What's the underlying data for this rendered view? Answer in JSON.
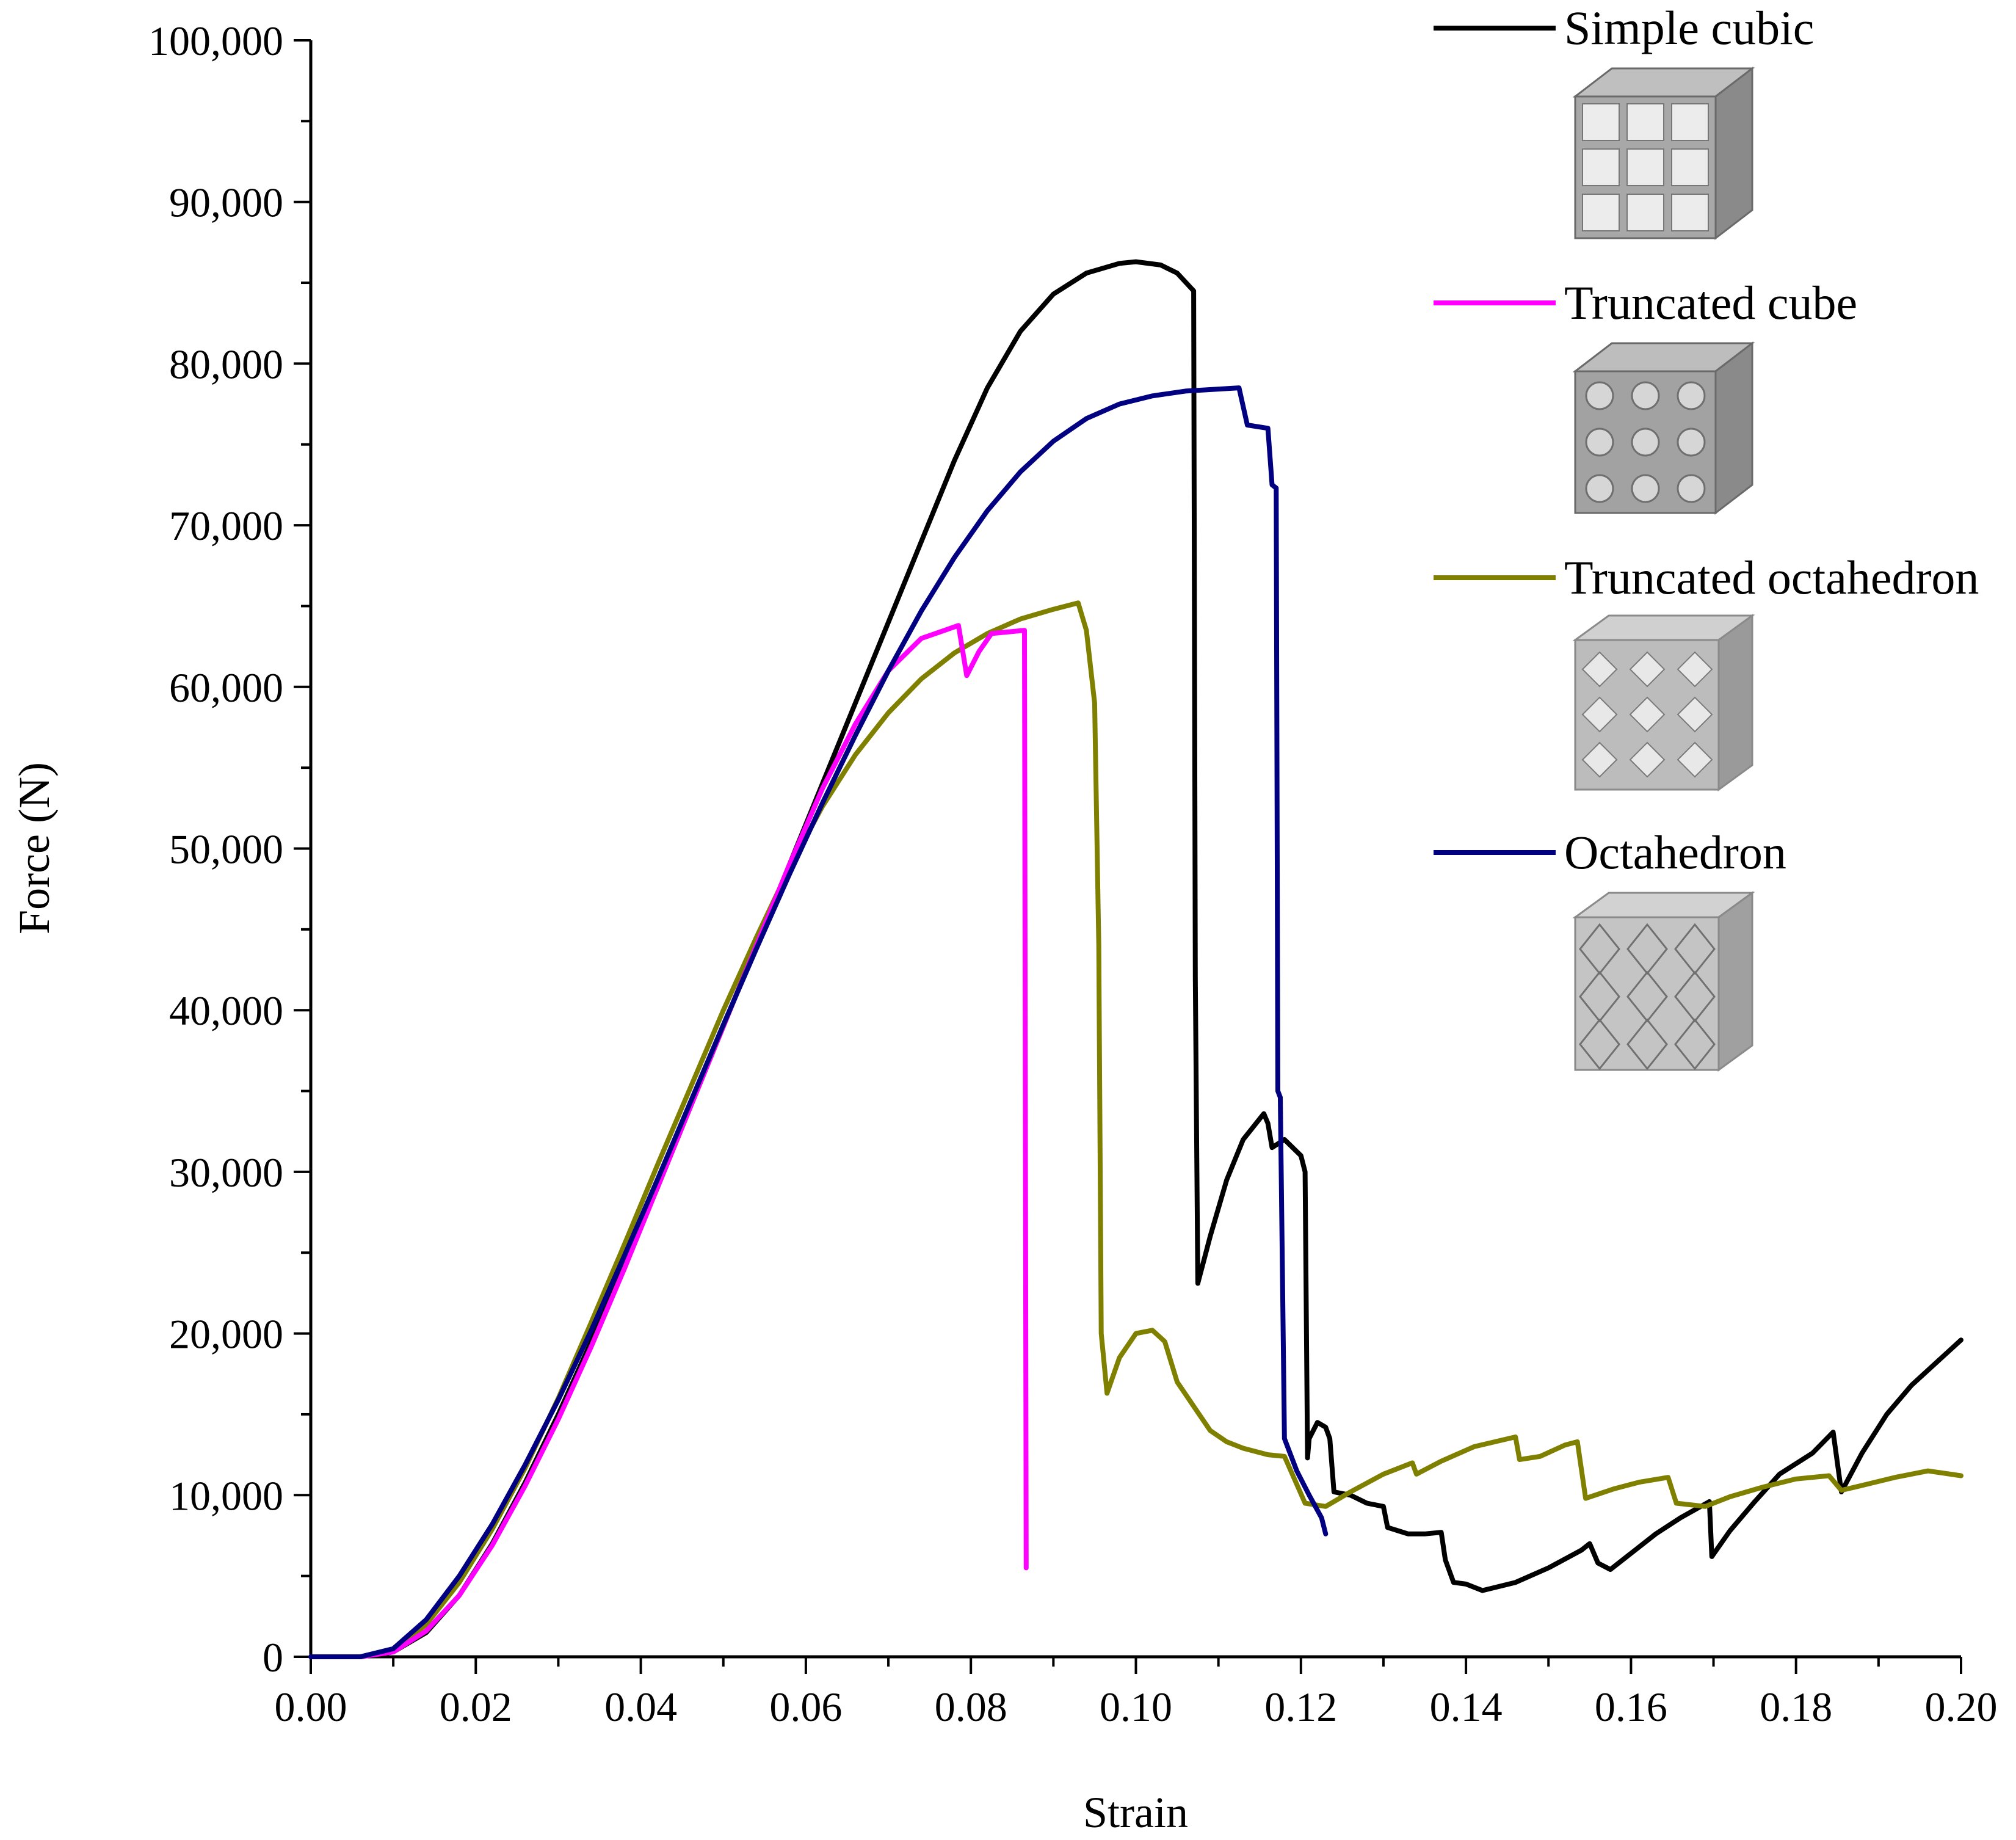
{
  "chart_data": {
    "type": "line",
    "title": "",
    "xlabel": "Strain",
    "ylabel": "Force (N)",
    "xlim": [
      0,
      0.2
    ],
    "ylim": [
      0,
      100000
    ],
    "x_ticks": [
      "0.00",
      "0.02",
      "0.04",
      "0.06",
      "0.08",
      "0.10",
      "0.12",
      "0.14",
      "0.16",
      "0.18",
      "0.20"
    ],
    "y_ticks": [
      "0",
      "10,000",
      "20,000",
      "30,000",
      "40,000",
      "50,000",
      "60,000",
      "70,000",
      "80,000",
      "90,000",
      "100,000"
    ],
    "legend_position": "top-right",
    "series": [
      {
        "name": "Simple cubic",
        "color": "#000000",
        "icon": "simple-cubic-lattice-icon",
        "points": [
          [
            0,
            0
          ],
          [
            0.006,
            0
          ],
          [
            0.01,
            300
          ],
          [
            0.014,
            1500
          ],
          [
            0.018,
            3800
          ],
          [
            0.022,
            7000
          ],
          [
            0.026,
            10800
          ],
          [
            0.03,
            15000
          ],
          [
            0.034,
            19500
          ],
          [
            0.038,
            24200
          ],
          [
            0.042,
            29000
          ],
          [
            0.046,
            34000
          ],
          [
            0.05,
            39000
          ],
          [
            0.054,
            44000
          ],
          [
            0.058,
            49000
          ],
          [
            0.062,
            54000
          ],
          [
            0.066,
            59000
          ],
          [
            0.07,
            64000
          ],
          [
            0.074,
            69000
          ],
          [
            0.078,
            74000
          ],
          [
            0.082,
            78500
          ],
          [
            0.086,
            82000
          ],
          [
            0.09,
            84300
          ],
          [
            0.094,
            85600
          ],
          [
            0.098,
            86200
          ],
          [
            0.1,
            86300
          ],
          [
            0.103,
            86100
          ],
          [
            0.105,
            85600
          ],
          [
            0.107,
            84500
          ],
          [
            0.1072,
            42000
          ],
          [
            0.1075,
            23100
          ],
          [
            0.109,
            26000
          ],
          [
            0.111,
            29500
          ],
          [
            0.113,
            32000
          ],
          [
            0.1155,
            33600
          ],
          [
            0.116,
            33000
          ],
          [
            0.1165,
            31500
          ],
          [
            0.118,
            32000
          ],
          [
            0.12,
            31000
          ],
          [
            0.1205,
            30000
          ],
          [
            0.1208,
            12300
          ],
          [
            0.121,
            13500
          ],
          [
            0.122,
            14500
          ],
          [
            0.123,
            14200
          ],
          [
            0.1235,
            13500
          ],
          [
            0.124,
            10200
          ],
          [
            0.126,
            10000
          ],
          [
            0.128,
            9500
          ],
          [
            0.13,
            9300
          ],
          [
            0.1305,
            8000
          ],
          [
            0.133,
            7600
          ],
          [
            0.135,
            7600
          ],
          [
            0.137,
            7700
          ],
          [
            0.1375,
            6000
          ],
          [
            0.1385,
            4600
          ],
          [
            0.14,
            4500
          ],
          [
            0.142,
            4100
          ],
          [
            0.146,
            4600
          ],
          [
            0.15,
            5500
          ],
          [
            0.154,
            6600
          ],
          [
            0.155,
            7000
          ],
          [
            0.156,
            5800
          ],
          [
            0.1575,
            5400
          ],
          [
            0.16,
            6400
          ],
          [
            0.163,
            7600
          ],
          [
            0.166,
            8600
          ],
          [
            0.1695,
            9600
          ],
          [
            0.1698,
            6200
          ],
          [
            0.172,
            7800
          ],
          [
            0.175,
            9600
          ],
          [
            0.178,
            11300
          ],
          [
            0.182,
            12600
          ],
          [
            0.1845,
            13900
          ],
          [
            0.1855,
            10200
          ],
          [
            0.188,
            12600
          ],
          [
            0.191,
            15000
          ],
          [
            0.194,
            16800
          ],
          [
            0.197,
            18200
          ],
          [
            0.2,
            19600
          ]
        ]
      },
      {
        "name": "Truncated cube",
        "color": "#ff00ff",
        "icon": "truncated-cube-lattice-icon",
        "points": [
          [
            0,
            0
          ],
          [
            0.006,
            0
          ],
          [
            0.01,
            300
          ],
          [
            0.014,
            1600
          ],
          [
            0.018,
            3800
          ],
          [
            0.022,
            6900
          ],
          [
            0.026,
            10600
          ],
          [
            0.03,
            14700
          ],
          [
            0.034,
            19200
          ],
          [
            0.038,
            24000
          ],
          [
            0.042,
            29000
          ],
          [
            0.046,
            34000
          ],
          [
            0.05,
            39000
          ],
          [
            0.054,
            44000
          ],
          [
            0.058,
            49000
          ],
          [
            0.062,
            53700
          ],
          [
            0.066,
            57700
          ],
          [
            0.07,
            61000
          ],
          [
            0.074,
            63000
          ],
          [
            0.0785,
            63800
          ],
          [
            0.0795,
            60700
          ],
          [
            0.081,
            62200
          ],
          [
            0.0825,
            63300
          ],
          [
            0.0865,
            63500
          ],
          [
            0.0867,
            5500
          ]
        ]
      },
      {
        "name": "Truncated octahedron",
        "color": "#808000",
        "icon": "truncated-octahedron-lattice-icon",
        "points": [
          [
            0,
            0
          ],
          [
            0.006,
            0
          ],
          [
            0.01,
            400
          ],
          [
            0.014,
            2000
          ],
          [
            0.018,
            4600
          ],
          [
            0.022,
            7900
          ],
          [
            0.026,
            11700
          ],
          [
            0.03,
            16000
          ],
          [
            0.034,
            20700
          ],
          [
            0.038,
            25500
          ],
          [
            0.042,
            30400
          ],
          [
            0.046,
            35200
          ],
          [
            0.05,
            40000
          ],
          [
            0.054,
            44500
          ],
          [
            0.058,
            48800
          ],
          [
            0.062,
            52600
          ],
          [
            0.066,
            55800
          ],
          [
            0.07,
            58400
          ],
          [
            0.074,
            60500
          ],
          [
            0.078,
            62100
          ],
          [
            0.082,
            63300
          ],
          [
            0.086,
            64200
          ],
          [
            0.09,
            64800
          ],
          [
            0.093,
            65200
          ],
          [
            0.094,
            63500
          ],
          [
            0.095,
            59000
          ],
          [
            0.0955,
            44000
          ],
          [
            0.0958,
            20000
          ],
          [
            0.0965,
            16300
          ],
          [
            0.098,
            18500
          ],
          [
            0.1,
            20000
          ],
          [
            0.102,
            20200
          ],
          [
            0.1035,
            19500
          ],
          [
            0.105,
            17000
          ],
          [
            0.107,
            15500
          ],
          [
            0.109,
            14000
          ],
          [
            0.111,
            13300
          ],
          [
            0.113,
            12900
          ],
          [
            0.116,
            12500
          ],
          [
            0.118,
            12400
          ],
          [
            0.1205,
            9500
          ],
          [
            0.123,
            9300
          ],
          [
            0.126,
            10200
          ],
          [
            0.13,
            11300
          ],
          [
            0.1335,
            12000
          ],
          [
            0.134,
            11300
          ],
          [
            0.137,
            12100
          ],
          [
            0.141,
            13000
          ],
          [
            0.146,
            13600
          ],
          [
            0.1465,
            12200
          ],
          [
            0.149,
            12400
          ],
          [
            0.152,
            13100
          ],
          [
            0.1535,
            13300
          ],
          [
            0.1545,
            9800
          ],
          [
            0.158,
            10400
          ],
          [
            0.161,
            10800
          ],
          [
            0.1645,
            11100
          ],
          [
            0.1655,
            9500
          ],
          [
            0.169,
            9300
          ],
          [
            0.172,
            9900
          ],
          [
            0.176,
            10500
          ],
          [
            0.18,
            11000
          ],
          [
            0.184,
            11200
          ],
          [
            0.1855,
            10300
          ],
          [
            0.188,
            10600
          ],
          [
            0.192,
            11100
          ],
          [
            0.196,
            11500
          ],
          [
            0.2,
            11200
          ]
        ]
      },
      {
        "name": "Octahedron",
        "color": "#000080",
        "icon": "octahedron-lattice-icon",
        "points": [
          [
            0,
            0
          ],
          [
            0.006,
            0
          ],
          [
            0.01,
            500
          ],
          [
            0.014,
            2300
          ],
          [
            0.018,
            5000
          ],
          [
            0.022,
            8200
          ],
          [
            0.026,
            11900
          ],
          [
            0.03,
            15900
          ],
          [
            0.034,
            20200
          ],
          [
            0.038,
            24800
          ],
          [
            0.042,
            29500
          ],
          [
            0.046,
            34300
          ],
          [
            0.05,
            39100
          ],
          [
            0.054,
            43800
          ],
          [
            0.058,
            48400
          ],
          [
            0.062,
            52800
          ],
          [
            0.066,
            57000
          ],
          [
            0.07,
            61000
          ],
          [
            0.074,
            64700
          ],
          [
            0.078,
            68000
          ],
          [
            0.082,
            70900
          ],
          [
            0.086,
            73300
          ],
          [
            0.09,
            75200
          ],
          [
            0.094,
            76600
          ],
          [
            0.098,
            77500
          ],
          [
            0.102,
            78000
          ],
          [
            0.106,
            78300
          ],
          [
            0.1125,
            78500
          ],
          [
            0.1135,
            76200
          ],
          [
            0.116,
            76000
          ],
          [
            0.1165,
            72500
          ],
          [
            0.117,
            72300
          ],
          [
            0.1172,
            35000
          ],
          [
            0.1175,
            34600
          ],
          [
            0.118,
            13500
          ],
          [
            0.1195,
            11500
          ],
          [
            0.121,
            10000
          ],
          [
            0.1225,
            8600
          ],
          [
            0.123,
            7600
          ]
        ]
      }
    ]
  }
}
